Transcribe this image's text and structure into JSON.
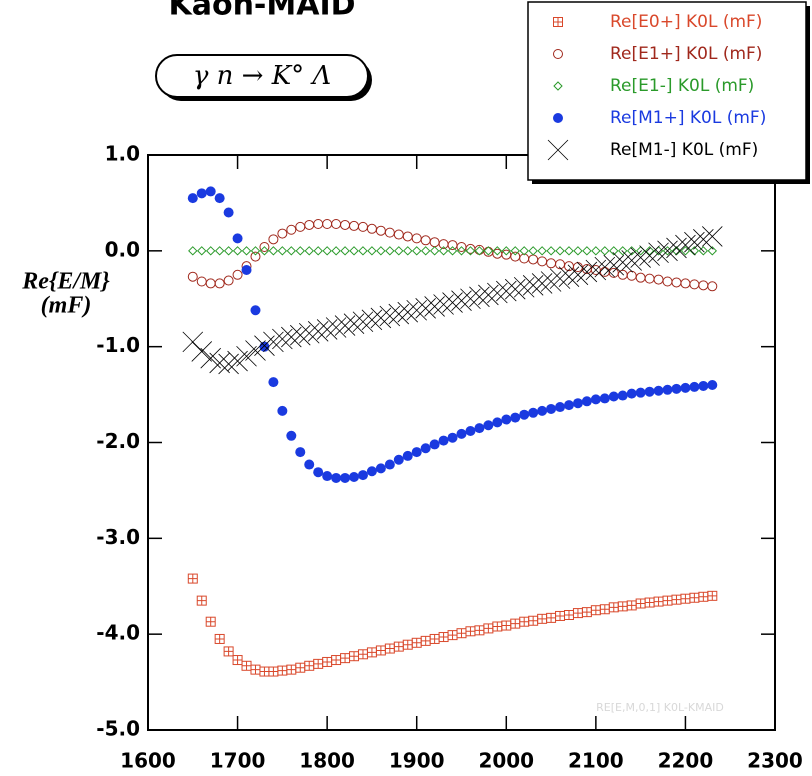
{
  "chart_data": {
    "type": "scatter",
    "title": "Kaon-MAID",
    "reaction": "γ n → K° Λ",
    "ylabel": [
      "Re{E/M}",
      "(mF)"
    ],
    "watermark": "RE[E,M,0,1] K0L-KMAID",
    "xlim": [
      1600,
      2300
    ],
    "xticks": [
      1600,
      1700,
      1800,
      1900,
      2000,
      2100,
      2200,
      2300
    ],
    "ylim": [
      -5,
      1
    ],
    "yticks": [
      {
        "value": 1,
        "label": "1.0"
      },
      {
        "value": 0,
        "label": "0.0"
      },
      {
        "value": -1,
        "label": "-1.0"
      },
      {
        "value": -2,
        "label": "-2.0"
      },
      {
        "value": -3,
        "label": "-3.0"
      },
      {
        "value": -4,
        "label": "-4.0"
      },
      {
        "value": -5,
        "label": "-5.0"
      }
    ],
    "legend": "top-right",
    "x": [
      1650,
      1660,
      1670,
      1680,
      1690,
      1700,
      1710,
      1720,
      1730,
      1740,
      1750,
      1760,
      1770,
      1780,
      1790,
      1800,
      1810,
      1820,
      1830,
      1840,
      1850,
      1860,
      1870,
      1880,
      1890,
      1900,
      1910,
      1920,
      1930,
      1940,
      1950,
      1960,
      1970,
      1980,
      1990,
      2000,
      2010,
      2020,
      2030,
      2040,
      2050,
      2060,
      2070,
      2080,
      2090,
      2100,
      2110,
      2120,
      2130,
      2140,
      2150,
      2160,
      2170,
      2180,
      2190,
      2200,
      2210,
      2220,
      2230
    ],
    "series": [
      {
        "name": "Re[E0+] K0L (mF)",
        "color": "#d9482b",
        "marker": "square-plus",
        "values": [
          -3.42,
          -3.65,
          -3.87,
          -4.05,
          -4.18,
          -4.27,
          -4.33,
          -4.37,
          -4.39,
          -4.39,
          -4.38,
          -4.37,
          -4.35,
          -4.33,
          -4.31,
          -4.29,
          -4.27,
          -4.25,
          -4.23,
          -4.21,
          -4.19,
          -4.17,
          -4.15,
          -4.13,
          -4.11,
          -4.09,
          -4.07,
          -4.05,
          -4.03,
          -4.01,
          -3.99,
          -3.97,
          -3.96,
          -3.94,
          -3.92,
          -3.91,
          -3.89,
          -3.87,
          -3.86,
          -3.84,
          -3.83,
          -3.81,
          -3.8,
          -3.78,
          -3.77,
          -3.75,
          -3.74,
          -3.72,
          -3.71,
          -3.7,
          -3.68,
          -3.67,
          -3.66,
          -3.65,
          -3.64,
          -3.63,
          -3.62,
          -3.61,
          -3.6
        ]
      },
      {
        "name": "Re[E1+] K0L (mF)",
        "color": "#a0281c",
        "marker": "circle",
        "values": [
          -0.27,
          -0.32,
          -0.34,
          -0.34,
          -0.31,
          -0.25,
          -0.16,
          -0.06,
          0.04,
          0.12,
          0.18,
          0.22,
          0.25,
          0.27,
          0.28,
          0.28,
          0.28,
          0.27,
          0.26,
          0.25,
          0.23,
          0.21,
          0.19,
          0.17,
          0.15,
          0.13,
          0.11,
          0.09,
          0.07,
          0.06,
          0.04,
          0.02,
          0.01,
          -0.01,
          -0.03,
          -0.04,
          -0.06,
          -0.08,
          -0.09,
          -0.11,
          -0.13,
          -0.14,
          -0.16,
          -0.17,
          -0.19,
          -0.2,
          -0.22,
          -0.23,
          -0.25,
          -0.26,
          -0.28,
          -0.29,
          -0.3,
          -0.32,
          -0.33,
          -0.34,
          -0.35,
          -0.36,
          -0.37
        ]
      },
      {
        "name": "Re[E1-] K0L (mF)",
        "color": "#2a9a2a",
        "marker": "diamond",
        "values": [
          0,
          0,
          0,
          0,
          0,
          0,
          0,
          0,
          0,
          0,
          0,
          0,
          0,
          0,
          0,
          0,
          0,
          0,
          0,
          0,
          0,
          0,
          0,
          0,
          0,
          0,
          0,
          0,
          0,
          0,
          0,
          0,
          0,
          0,
          0,
          0,
          0,
          0,
          0,
          0,
          0,
          0,
          0,
          0,
          0,
          0,
          0,
          0,
          0,
          0,
          0,
          0,
          0,
          0,
          0,
          0,
          0,
          0,
          0
        ]
      },
      {
        "name": "Re[M1+] K0L (mF)",
        "color": "#1a3ae0",
        "marker": "dot",
        "values": [
          0.55,
          0.6,
          0.62,
          0.55,
          0.4,
          0.13,
          -0.2,
          -0.62,
          -1,
          -1.37,
          -1.67,
          -1.93,
          -2.1,
          -2.23,
          -2.31,
          -2.35,
          -2.37,
          -2.37,
          -2.36,
          -2.34,
          -2.3,
          -2.27,
          -2.23,
          -2.18,
          -2.14,
          -2.1,
          -2.06,
          -2.02,
          -1.98,
          -1.95,
          -1.91,
          -1.88,
          -1.85,
          -1.82,
          -1.79,
          -1.76,
          -1.74,
          -1.71,
          -1.69,
          -1.67,
          -1.65,
          -1.63,
          -1.61,
          -1.59,
          -1.57,
          -1.55,
          -1.54,
          -1.52,
          -1.51,
          -1.49,
          -1.48,
          -1.47,
          -1.46,
          -1.45,
          -1.44,
          -1.43,
          -1.42,
          -1.41,
          -1.4
        ]
      },
      {
        "name": "Re[M1-] K0L (mF)",
        "color": "#000000",
        "marker": "x",
        "values": [
          -0.95,
          -1.05,
          -1.12,
          -1.17,
          -1.18,
          -1.15,
          -1.1,
          -1.04,
          -0.99,
          -0.95,
          -0.92,
          -0.9,
          -0.88,
          -0.86,
          -0.84,
          -0.82,
          -0.8,
          -0.78,
          -0.76,
          -0.74,
          -0.72,
          -0.7,
          -0.68,
          -0.66,
          -0.64,
          -0.62,
          -0.6,
          -0.58,
          -0.56,
          -0.54,
          -0.52,
          -0.5,
          -0.48,
          -0.46,
          -0.44,
          -0.42,
          -0.4,
          -0.38,
          -0.36,
          -0.34,
          -0.32,
          -0.29,
          -0.27,
          -0.25,
          -0.22,
          -0.2,
          -0.17,
          -0.15,
          -0.12,
          -0.1,
          -0.07,
          -0.05,
          -0.02,
          0,
          0.03,
          0.06,
          0.09,
          0.12,
          0.15
        ]
      }
    ]
  }
}
